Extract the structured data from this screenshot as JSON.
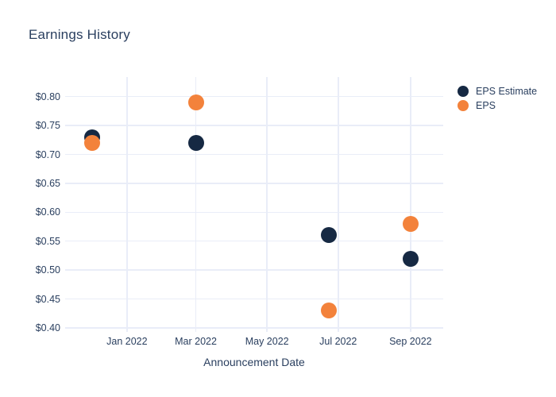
{
  "chart_data": {
    "type": "scatter",
    "title": "Earnings History",
    "xlabel": "Announcement Date",
    "ylabel": "",
    "grid": true,
    "grid_color": "#e9edf8",
    "text_color": "#2a3f5f",
    "plot_bg": "#ffffff",
    "legend_position": "top-right-outside",
    "xlim": [
      "2021-11-09",
      "2022-09-29"
    ],
    "ylim": [
      0.393,
      0.834
    ],
    "x_ticks": [
      {
        "date": "2022-01-01",
        "label": "Jan 2022"
      },
      {
        "date": "2022-03-01",
        "label": "Mar 2022"
      },
      {
        "date": "2022-05-01",
        "label": "May 2022"
      },
      {
        "date": "2022-07-01",
        "label": "Jul 2022"
      },
      {
        "date": "2022-09-01",
        "label": "Sep 2022"
      }
    ],
    "y_ticks": [
      {
        "value": 0.4,
        "label": "$0.40"
      },
      {
        "value": 0.45,
        "label": "$0.45"
      },
      {
        "value": 0.5,
        "label": "$0.50"
      },
      {
        "value": 0.55,
        "label": "$0.55"
      },
      {
        "value": 0.6,
        "label": "$0.60"
      },
      {
        "value": 0.65,
        "label": "$0.65"
      },
      {
        "value": 0.7,
        "label": "$0.70"
      },
      {
        "value": 0.75,
        "label": "$0.75"
      },
      {
        "value": 0.8,
        "label": "$0.80"
      }
    ],
    "series": [
      {
        "name": "EPS Estimate",
        "color": "#162943",
        "marker_size": 20,
        "points": [
          {
            "x": "2021-12-02",
            "y": 0.73
          },
          {
            "x": "2022-03-01",
            "y": 0.72
          },
          {
            "x": "2022-06-23",
            "y": 0.56
          },
          {
            "x": "2022-09-01",
            "y": 0.52
          }
        ]
      },
      {
        "name": "EPS",
        "color": "#f3823b",
        "marker_size": 20,
        "points": [
          {
            "x": "2021-12-02",
            "y": 0.72
          },
          {
            "x": "2022-03-01",
            "y": 0.79
          },
          {
            "x": "2022-06-23",
            "y": 0.43
          },
          {
            "x": "2022-09-01",
            "y": 0.58
          }
        ]
      }
    ]
  }
}
